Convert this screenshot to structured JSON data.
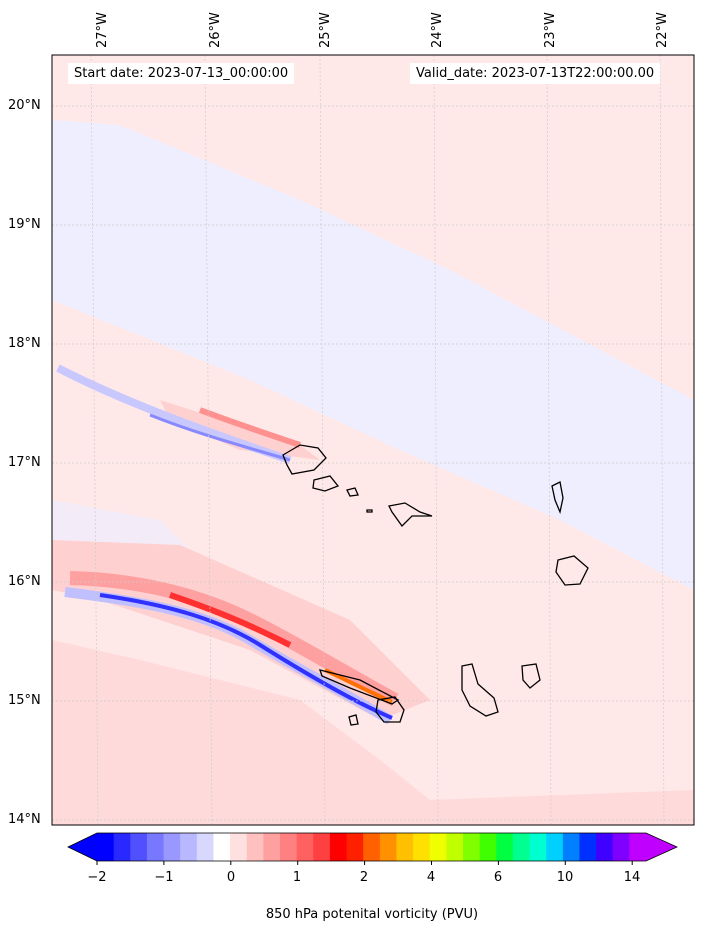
{
  "header": {
    "start_date": "Start date: 2023-07-13_00:00:00",
    "valid_date": "Valid_date: 2023-07-13T22:00:00.00"
  },
  "map": {
    "lon_labels": [
      "27°W",
      "26°W",
      "25°W",
      "24°W",
      "23°W",
      "22°W"
    ],
    "lat_labels": [
      "20°N",
      "19°N",
      "18°N",
      "17°N",
      "16°N",
      "15°N",
      "14°N"
    ],
    "background_color": "#ffe8e8",
    "light_blue_color": "#eeeeff"
  },
  "colorbar": {
    "tick_labels": [
      "−2",
      "−1",
      "0",
      "1",
      "2",
      "4",
      "6",
      "10",
      "14"
    ],
    "label": "850 hPa potenital vorticity (PVU)",
    "colors": [
      "#0000ff",
      "#2828ff",
      "#5050ff",
      "#7878ff",
      "#9898ff",
      "#b8b8ff",
      "#d8d8ff",
      "#ffffff",
      "#ffe0e0",
      "#ffc0c0",
      "#ffa0a0",
      "#ff8080",
      "#ff6060",
      "#ff4040",
      "#ff0000",
      "#ff2000",
      "#ff6000",
      "#ff9000",
      "#ffc000",
      "#ffe000",
      "#f0ff00",
      "#c0ff00",
      "#80ff00",
      "#40ff00",
      "#00ff40",
      "#00ff90",
      "#00ffd0",
      "#00d0ff",
      "#0080ff",
      "#0030ff",
      "#4000ff",
      "#8000ff",
      "#c000ff"
    ]
  }
}
